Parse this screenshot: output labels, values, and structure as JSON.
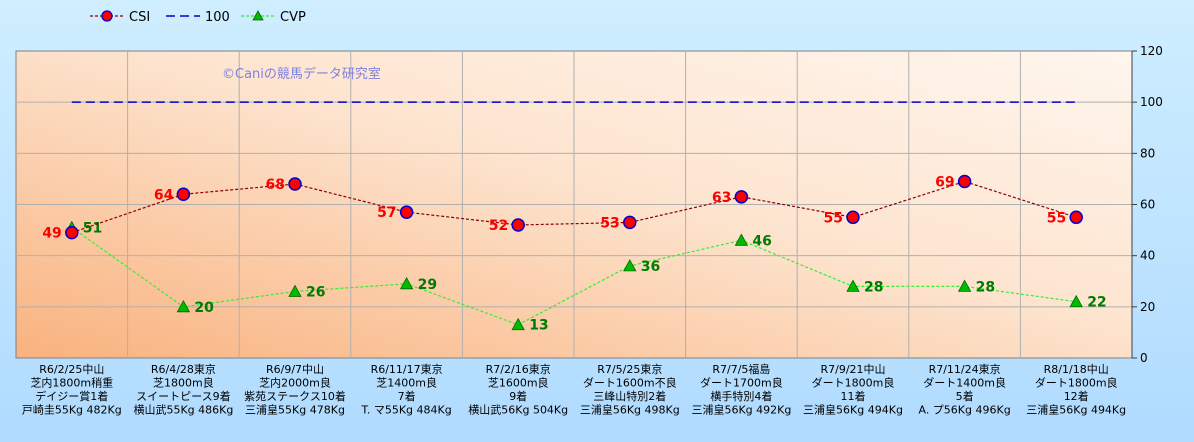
{
  "chart_data": {
    "type": "line",
    "categories": [
      [
        "R6/2/25中山",
        "芝内1800m稍重",
        "デイジー賞1着",
        "戸崎圭55Kg 482Kg"
      ],
      [
        "R6/4/28東京",
        "芝1800m良",
        "スイートピース9着",
        "横山武55Kg 486Kg"
      ],
      [
        "R6/9/7中山",
        "芝内2000m良",
        "紫苑ステークス10着",
        "三浦皇55Kg 478Kg"
      ],
      [
        "R6/11/17東京",
        "芝1400m良",
        "7着",
        "T. マ55Kg 484Kg"
      ],
      [
        "R7/2/16東京",
        "芝1600m良",
        "9着",
        "横山武56Kg 504Kg"
      ],
      [
        "R7/5/25東京",
        "ダート1600m不良",
        "三峰山特別2着",
        "三浦皇56Kg 498Kg"
      ],
      [
        "R7/7/5福島",
        "ダート1700m良",
        "横手特別4着",
        "三浦皇56Kg 492Kg"
      ],
      [
        "R7/9/21中山",
        "ダート1800m良",
        "11着",
        "三浦皇56Kg 494Kg"
      ],
      [
        "R7/11/24東京",
        "ダート1400m良",
        "5着",
        "A. プ56Kg 496Kg"
      ],
      [
        "R8/1/18中山",
        "ダート1800m良",
        "12着",
        "三浦皇56Kg 494Kg"
      ]
    ],
    "series": [
      {
        "name": "CSI",
        "values": [
          49,
          64,
          68,
          57,
          52,
          53,
          63,
          55,
          69,
          55
        ],
        "color": "#8b0000",
        "marker_fill": "#ff0000",
        "marker_edge": "#0000cc"
      },
      {
        "name": "100",
        "values": [
          100,
          100,
          100,
          100,
          100,
          100,
          100,
          100,
          100,
          100
        ],
        "color": "#0000cc"
      },
      {
        "name": "CVP",
        "values": [
          51,
          20,
          26,
          29,
          13,
          36,
          46,
          28,
          28,
          22
        ],
        "color": "#33ee33",
        "marker_fill": "#00bb00"
      }
    ],
    "ylim": [
      0,
      120
    ],
    "yticks": [
      0,
      20,
      40,
      60,
      80,
      100,
      120
    ],
    "watermark": "©Caniの競馬データ研究室",
    "grid": true,
    "legend_position": "top-left"
  }
}
